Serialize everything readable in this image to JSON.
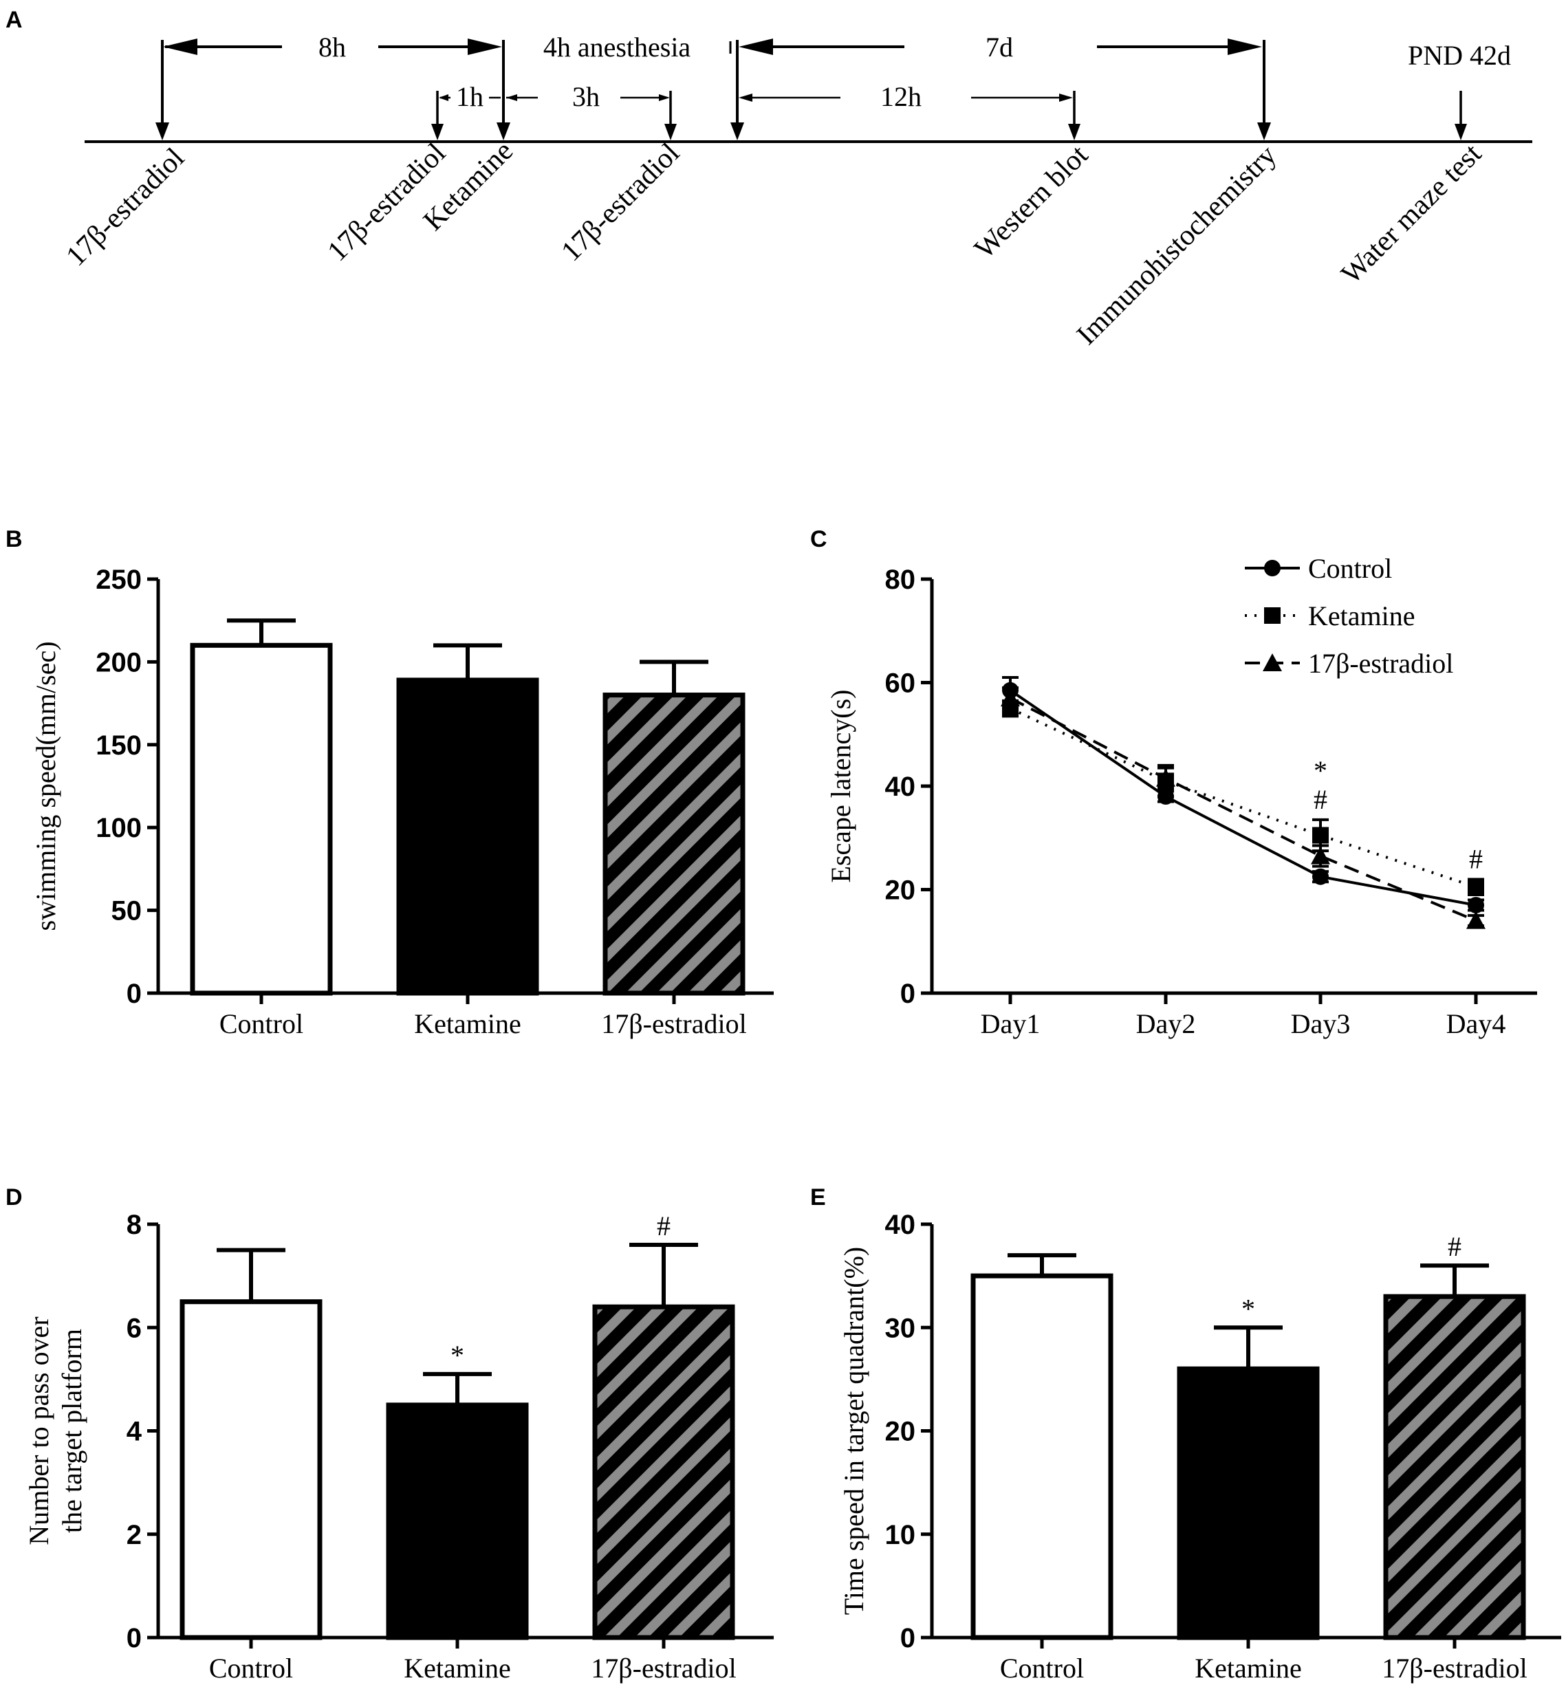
{
  "panel_labels": [
    "A",
    "B",
    "C",
    "D",
    "E"
  ],
  "timeline": {
    "intervals": {
      "8h": "8h",
      "anesthesia": "4h anesthesia",
      "7d": "7d",
      "1h": "1h",
      "3h": "3h",
      "12h": "12h",
      "pnd": "PND 42d"
    },
    "events": [
      "17β-estradiol",
      "17β-estradiol",
      "Ketamine",
      "17β-estradiol",
      "Western blot",
      "Immunohistochemistry",
      "Water maze test"
    ]
  },
  "chart_data": [
    {
      "id": "B",
      "type": "bar",
      "categories": [
        "Control",
        "Ketamine",
        "17β-estradiol"
      ],
      "values": [
        210,
        189,
        180
      ],
      "errors": [
        15,
        21,
        20
      ],
      "ylabel": "swimming speed(mm/sec)",
      "ylim": [
        0,
        250
      ],
      "yticks": [
        0,
        50,
        100,
        150,
        200,
        250
      ],
      "markers": [
        "",
        "",
        ""
      ],
      "fills": [
        "white",
        "black",
        "hatch"
      ]
    },
    {
      "id": "C",
      "type": "line",
      "categories": [
        "Day1",
        "Day2",
        "Day3",
        "Day4"
      ],
      "ylabel": "Escape latency(s)",
      "ylim": [
        0,
        80
      ],
      "yticks": [
        0,
        20,
        40,
        60,
        80
      ],
      "series": [
        {
          "name": "Control",
          "values": [
            58.5,
            38,
            22.5,
            17
          ],
          "errors": [
            2.5,
            1,
            1,
            1
          ],
          "marker": "circle",
          "dash": "solid"
        },
        {
          "name": "Ketamine",
          "values": [
            55,
            41,
            30.5,
            20.5
          ],
          "errors": [
            1.5,
            3,
            3,
            1.5
          ],
          "marker": "square",
          "dash": "dotted"
        },
        {
          "name": "17β-estradiol",
          "values": [
            57,
            41.5,
            26.5,
            14
          ],
          "errors": [
            2,
            2,
            2,
            1
          ],
          "marker": "triangle",
          "dash": "dashed"
        }
      ],
      "annotations": [
        {
          "category": "Day3",
          "text": "*"
        },
        {
          "category": "Day3",
          "text": "#"
        },
        {
          "category": "Day4",
          "text": "#"
        }
      ]
    },
    {
      "id": "D",
      "type": "bar",
      "categories": [
        "Control",
        "Ketamine",
        "17β-estradiol"
      ],
      "values": [
        6.5,
        4.5,
        6.4
      ],
      "errors": [
        1.0,
        0.6,
        1.2
      ],
      "ylabel": [
        "Number to pass over",
        "the target platform"
      ],
      "ylim": [
        0,
        8
      ],
      "yticks": [
        0,
        2,
        4,
        6,
        8
      ],
      "markers": [
        "",
        "*",
        "#"
      ],
      "fills": [
        "white",
        "black",
        "hatch"
      ]
    },
    {
      "id": "E",
      "type": "bar",
      "categories": [
        "Control",
        "Ketamine",
        "17β-estradiol"
      ],
      "values": [
        35,
        26,
        33
      ],
      "errors": [
        2,
        4,
        3
      ],
      "ylabel": "Time speed in target quadrant(%)",
      "ylim": [
        0,
        40
      ],
      "yticks": [
        0,
        10,
        20,
        30,
        40
      ],
      "markers": [
        "",
        "*",
        "#"
      ],
      "fills": [
        "white",
        "black",
        "hatch"
      ]
    }
  ]
}
